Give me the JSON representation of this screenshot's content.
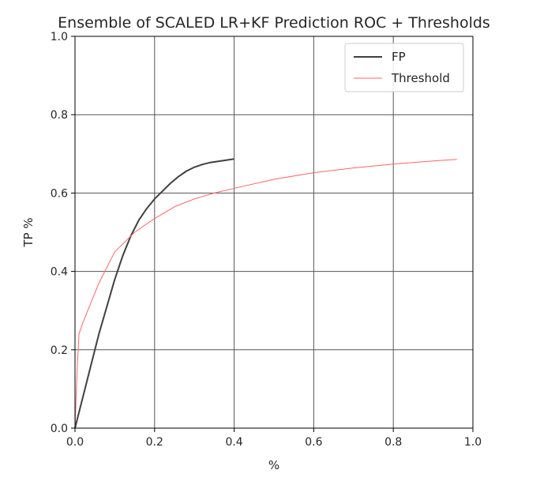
{
  "chart_data": {
    "type": "line",
    "title": "Ensemble of SCALED LR+KF Prediction ROC + Thresholds",
    "xlabel": "%",
    "ylabel": "TP %",
    "xlim": [
      0.0,
      1.0
    ],
    "ylim": [
      0.0,
      1.0
    ],
    "xticks": [
      0.0,
      0.2,
      0.4,
      0.6,
      0.8,
      1.0
    ],
    "yticks": [
      0.0,
      0.2,
      0.4,
      0.6,
      0.8,
      1.0
    ],
    "xtick_labels": [
      "0.0",
      "0.2",
      "0.4",
      "0.6",
      "0.8",
      "1.0"
    ],
    "ytick_labels": [
      "0.0",
      "0.2",
      "0.4",
      "0.6",
      "0.8",
      "1.0"
    ],
    "grid": true,
    "legend_position": "top-right",
    "series": [
      {
        "name": "FP",
        "color": "#404040",
        "x": [
          0.0,
          0.02,
          0.04,
          0.06,
          0.08,
          0.1,
          0.12,
          0.14,
          0.16,
          0.18,
          0.2,
          0.22,
          0.24,
          0.26,
          0.28,
          0.3,
          0.32,
          0.34,
          0.36,
          0.38,
          0.4
        ],
        "y": [
          0.0,
          0.08,
          0.16,
          0.24,
          0.31,
          0.38,
          0.44,
          0.49,
          0.53,
          0.56,
          0.585,
          0.605,
          0.625,
          0.642,
          0.656,
          0.666,
          0.673,
          0.678,
          0.681,
          0.684,
          0.687
        ]
      },
      {
        "name": "Threshold",
        "color": "#ff6666",
        "x": [
          0.0,
          0.005,
          0.01,
          0.02,
          0.04,
          0.06,
          0.08,
          0.1,
          0.15,
          0.2,
          0.25,
          0.3,
          0.35,
          0.4,
          0.5,
          0.6,
          0.7,
          0.8,
          0.9,
          0.96
        ],
        "y": [
          0.0,
          0.14,
          0.24,
          0.27,
          0.32,
          0.37,
          0.41,
          0.45,
          0.5,
          0.535,
          0.565,
          0.585,
          0.6,
          0.612,
          0.635,
          0.652,
          0.664,
          0.674,
          0.682,
          0.686
        ]
      }
    ]
  }
}
